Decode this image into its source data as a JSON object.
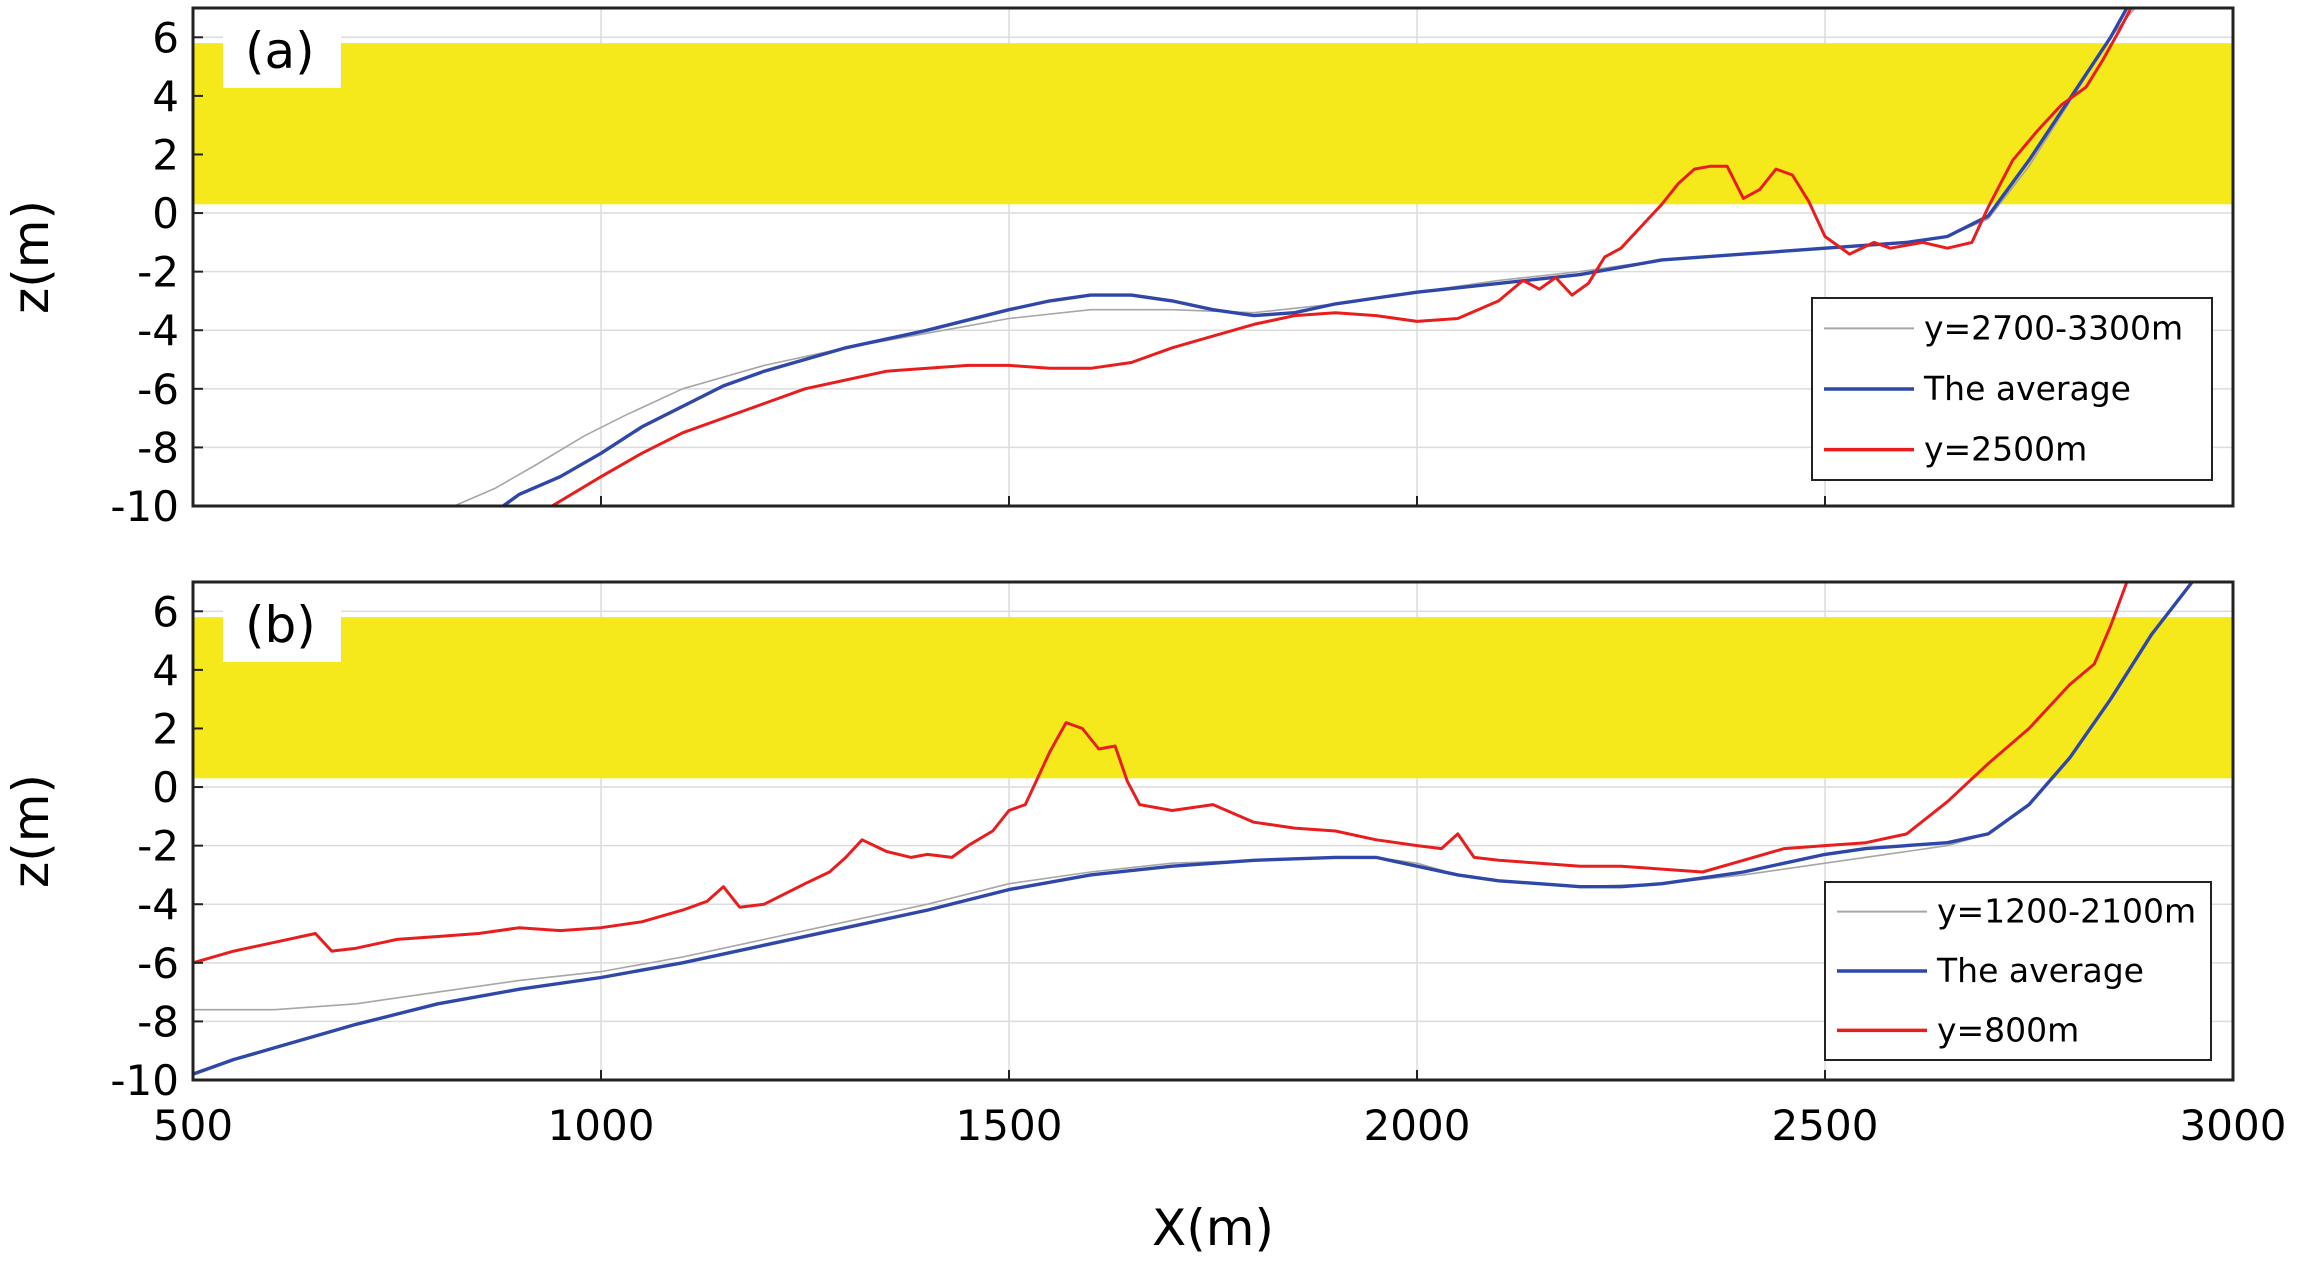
{
  "chart_data": [
    {
      "type": "line",
      "panel_label": "(a)",
      "xlabel": "",
      "ylabel": "z(m)",
      "xlim": [
        500,
        3000
      ],
      "ylim": [
        -10,
        7
      ],
      "x_ticks": [
        1000,
        1500,
        2000,
        2500
      ],
      "y_ticks": [
        -10,
        -8,
        -6,
        -4,
        -2,
        0,
        2,
        4,
        6
      ],
      "y_tick_labels": [
        "-10",
        "-8",
        "-6",
        "-4",
        "-2",
        "0",
        "2",
        "4",
        "6"
      ],
      "grid": true,
      "legend_position": "bottom-right",
      "shaded_band": {
        "y": [
          0.3,
          5.8
        ],
        "color": "#f5e91c"
      },
      "series": [
        {
          "name": "y=2700-3300m",
          "color": "#a6a6a6",
          "x": [
            820,
            870,
            920,
            980,
            1030,
            1100,
            1200,
            1300,
            1400,
            1500,
            1600,
            1700,
            1800,
            1900,
            2000,
            2100,
            2200,
            2300,
            2400,
            2500,
            2600,
            2650,
            2700,
            2750,
            2800,
            2850,
            2880
          ],
          "y": [
            -10.0,
            -9.4,
            -8.6,
            -7.6,
            -6.9,
            -6.0,
            -5.2,
            -4.6,
            -4.1,
            -3.6,
            -3.3,
            -3.3,
            -3.4,
            -3.1,
            -2.7,
            -2.3,
            -2.0,
            -1.6,
            -1.4,
            -1.2,
            -1.0,
            -0.8,
            -0.2,
            1.6,
            3.8,
            6.0,
            7.0
          ]
        },
        {
          "name": "The average",
          "color": "#2f47a8",
          "x": [
            880,
            900,
            950,
            1000,
            1050,
            1100,
            1150,
            1200,
            1300,
            1400,
            1500,
            1550,
            1600,
            1650,
            1700,
            1750,
            1800,
            1850,
            1900,
            1950,
            2000,
            2100,
            2200,
            2300,
            2400,
            2500,
            2600,
            2650,
            2700,
            2750,
            2800,
            2850,
            2870
          ],
          "y": [
            -10.0,
            -9.6,
            -9.0,
            -8.2,
            -7.3,
            -6.6,
            -5.9,
            -5.4,
            -4.6,
            -4.0,
            -3.3,
            -3.0,
            -2.8,
            -2.8,
            -3.0,
            -3.3,
            -3.5,
            -3.4,
            -3.1,
            -2.9,
            -2.7,
            -2.4,
            -2.1,
            -1.6,
            -1.4,
            -1.2,
            -1.0,
            -0.8,
            -0.1,
            1.8,
            3.9,
            6.0,
            7.0
          ]
        },
        {
          "name": "y=2500m",
          "color": "#e81d1d",
          "x": [
            940,
            1000,
            1050,
            1100,
            1150,
            1200,
            1250,
            1300,
            1350,
            1400,
            1450,
            1500,
            1550,
            1600,
            1650,
            1700,
            1750,
            1800,
            1850,
            1900,
            1950,
            2000,
            2050,
            2100,
            2130,
            2150,
            2170,
            2190,
            2210,
            2230,
            2250,
            2270,
            2300,
            2320,
            2340,
            2360,
            2380,
            2400,
            2420,
            2440,
            2460,
            2480,
            2500,
            2530,
            2560,
            2580,
            2600,
            2620,
            2650,
            2680,
            2700,
            2730,
            2760,
            2790,
            2820,
            2840,
            2860,
            2875
          ],
          "y": [
            -10.0,
            -9.0,
            -8.2,
            -7.5,
            -7.0,
            -6.5,
            -6.0,
            -5.7,
            -5.4,
            -5.3,
            -5.2,
            -5.2,
            -5.3,
            -5.3,
            -5.1,
            -4.6,
            -4.2,
            -3.8,
            -3.5,
            -3.4,
            -3.5,
            -3.7,
            -3.6,
            -3.0,
            -2.3,
            -2.6,
            -2.2,
            -2.8,
            -2.4,
            -1.5,
            -1.2,
            -0.6,
            0.3,
            1.0,
            1.5,
            1.6,
            1.6,
            0.5,
            0.8,
            1.5,
            1.3,
            0.4,
            -0.8,
            -1.4,
            -1.0,
            -1.2,
            -1.1,
            -1.0,
            -1.2,
            -1.0,
            0.2,
            1.8,
            2.8,
            3.7,
            4.3,
            5.2,
            6.2,
            7.0
          ]
        }
      ]
    },
    {
      "type": "line",
      "panel_label": "(b)",
      "xlabel": "X(m)",
      "ylabel": "z(m)",
      "xlim": [
        500,
        3000
      ],
      "ylim": [
        -10,
        7
      ],
      "x_ticks": [
        500,
        1000,
        1500,
        2000,
        2500,
        3000
      ],
      "x_tick_labels": [
        "500",
        "1000",
        "1500",
        "2000",
        "2500",
        "3000"
      ],
      "y_ticks": [
        -10,
        -8,
        -6,
        -4,
        -2,
        0,
        2,
        4,
        6
      ],
      "y_tick_labels": [
        "-10",
        "-8",
        "-6",
        "-4",
        "-2",
        "0",
        "2",
        "4",
        "6"
      ],
      "grid": true,
      "legend_position": "bottom-right",
      "shaded_band": {
        "y": [
          0.3,
          5.8
        ],
        "color": "#f5e91c"
      },
      "series": [
        {
          "name": "y=1200-2100m",
          "color": "#a6a6a6",
          "x": [
            500,
            600,
            700,
            800,
            900,
            1000,
            1100,
            1200,
            1300,
            1400,
            1500,
            1600,
            1700,
            1800,
            1900,
            1950,
            2000,
            2050,
            2100,
            2200,
            2300,
            2400,
            2500,
            2600,
            2650,
            2700,
            2750,
            2800,
            2850,
            2900,
            2950
          ],
          "y": [
            -7.6,
            -7.6,
            -7.4,
            -7.0,
            -6.6,
            -6.3,
            -5.8,
            -5.2,
            -4.6,
            -4.0,
            -3.3,
            -2.9,
            -2.6,
            -2.5,
            -2.4,
            -2.4,
            -2.6,
            -3.0,
            -3.2,
            -3.4,
            -3.3,
            -3.0,
            -2.6,
            -2.2,
            -2.0,
            -1.6,
            -0.6,
            1.0,
            3.0,
            5.2,
            7.0
          ]
        },
        {
          "name": "The average",
          "color": "#2f47a8",
          "x": [
            500,
            550,
            600,
            700,
            800,
            900,
            1000,
            1100,
            1200,
            1300,
            1400,
            1500,
            1600,
            1700,
            1800,
            1900,
            1950,
            2000,
            2050,
            2100,
            2150,
            2200,
            2250,
            2300,
            2350,
            2400,
            2450,
            2500,
            2550,
            2600,
            2650,
            2700,
            2750,
            2800,
            2850,
            2900,
            2950
          ],
          "y": [
            -9.8,
            -9.3,
            -8.9,
            -8.1,
            -7.4,
            -6.9,
            -6.5,
            -6.0,
            -5.4,
            -4.8,
            -4.2,
            -3.5,
            -3.0,
            -2.7,
            -2.5,
            -2.4,
            -2.4,
            -2.7,
            -3.0,
            -3.2,
            -3.3,
            -3.4,
            -3.4,
            -3.3,
            -3.1,
            -2.9,
            -2.6,
            -2.3,
            -2.1,
            -2.0,
            -1.9,
            -1.6,
            -0.6,
            1.0,
            3.0,
            5.2,
            7.0
          ]
        },
        {
          "name": "y=800m",
          "color": "#e81d1d",
          "x": [
            500,
            550,
            600,
            650,
            670,
            700,
            750,
            800,
            850,
            900,
            950,
            1000,
            1050,
            1100,
            1130,
            1150,
            1170,
            1200,
            1250,
            1280,
            1300,
            1320,
            1350,
            1380,
            1400,
            1430,
            1450,
            1480,
            1500,
            1520,
            1550,
            1570,
            1590,
            1610,
            1630,
            1645,
            1660,
            1700,
            1750,
            1800,
            1850,
            1900,
            1950,
            2000,
            2030,
            2050,
            2070,
            2100,
            2150,
            2200,
            2250,
            2300,
            2350,
            2400,
            2450,
            2500,
            2550,
            2600,
            2650,
            2700,
            2750,
            2800,
            2830,
            2850,
            2870
          ],
          "y": [
            -6.0,
            -5.6,
            -5.3,
            -5.0,
            -5.6,
            -5.5,
            -5.2,
            -5.1,
            -5.0,
            -4.8,
            -4.9,
            -4.8,
            -4.6,
            -4.2,
            -3.9,
            -3.4,
            -4.1,
            -4.0,
            -3.3,
            -2.9,
            -2.4,
            -1.8,
            -2.2,
            -2.4,
            -2.3,
            -2.4,
            -2.0,
            -1.5,
            -0.8,
            -0.6,
            1.2,
            2.2,
            2.0,
            1.3,
            1.4,
            0.2,
            -0.6,
            -0.8,
            -0.6,
            -1.2,
            -1.4,
            -1.5,
            -1.8,
            -2.0,
            -2.1,
            -1.6,
            -2.4,
            -2.5,
            -2.6,
            -2.7,
            -2.7,
            -2.8,
            -2.9,
            -2.5,
            -2.1,
            -2.0,
            -1.9,
            -1.6,
            -0.5,
            0.8,
            2.0,
            3.5,
            4.2,
            5.5,
            7.0
          ]
        }
      ]
    }
  ]
}
